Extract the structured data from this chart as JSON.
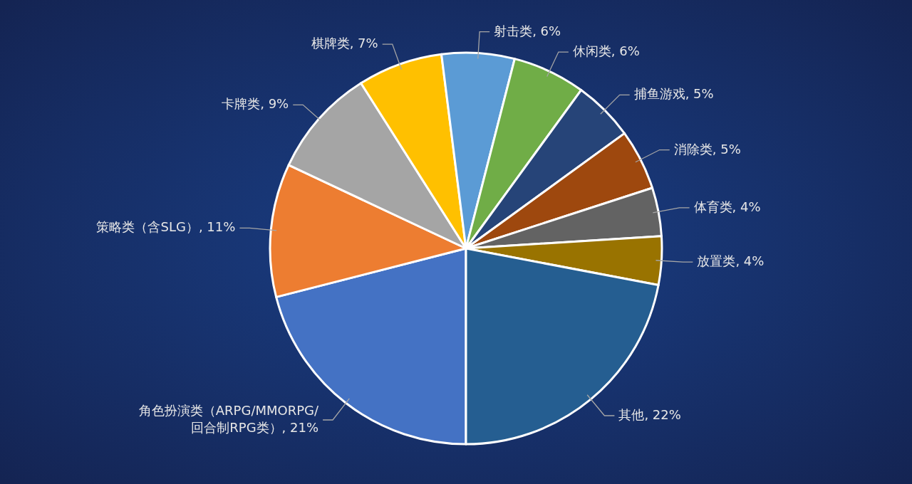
{
  "chart_data": {
    "type": "pie",
    "categories": [
      "角色扮演类（ARPG/MMORPG/回合制RPG类）",
      "策略类（含SLG）",
      "卡牌类",
      "棋牌类",
      "射击类",
      "休闲类",
      "捕鱼游戏",
      "消除类",
      "体育类",
      "放置类",
      "其他"
    ],
    "values": [
      21,
      11,
      9,
      7,
      6,
      6,
      5,
      5,
      4,
      4,
      22
    ],
    "value_labels": [
      "21%",
      "11%",
      "9%",
      "7%",
      "6%",
      "6%",
      "5%",
      "5%",
      "4%",
      "4%",
      "22%"
    ],
    "colors": [
      "#4472c4",
      "#ed7d31",
      "#a5a5a5",
      "#ffc000",
      "#5b9bd5",
      "#70ad47",
      "#264478",
      "#9e480e",
      "#636363",
      "#997300",
      "#255e91"
    ],
    "data_labels": true
  }
}
